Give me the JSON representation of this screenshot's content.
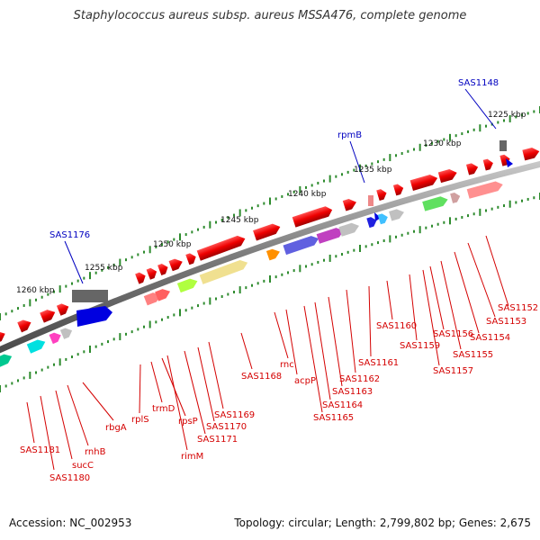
{
  "title": "Staphylococcus aureus subsp. aureus MSSA476, complete genome",
  "accession_label": "Accession: NC_002953",
  "topology_label": "Topology: circular; Length: 2,799,802 bp; Genes: 2,675",
  "kbp_labels": [
    "1225 kbp",
    "1230 kbp",
    "1235 kbp",
    "1240 kbp",
    "1245 kbp",
    "1250 kbp",
    "1255 kbp",
    "1260 kbp"
  ],
  "blue_labels": [
    "SAS1148",
    "rpmB",
    "SAS1176"
  ],
  "red_labels": [
    "SAS1152",
    "SAS1153",
    "SAS1154",
    "SAS1155",
    "SAS1156",
    "SAS1157",
    "SAS1159",
    "SAS1160",
    "SAS1161",
    "SAS1162",
    "SAS1163",
    "SAS1164",
    "SAS1165",
    "acpP",
    "rnc",
    "SAS1168",
    "SAS1169",
    "SAS1170",
    "SAS1171",
    "rimM",
    "rpsP",
    "trmD",
    "rplS",
    "rbgA",
    "rnhB",
    "sucC",
    "SAS1180",
    "SAS1181"
  ],
  "colors": {
    "gene_red": "#ee0000",
    "kbp_tick": "#2e8b2e",
    "backbone": "#8a8a8a",
    "blue_gene": "#0000e0"
  }
}
